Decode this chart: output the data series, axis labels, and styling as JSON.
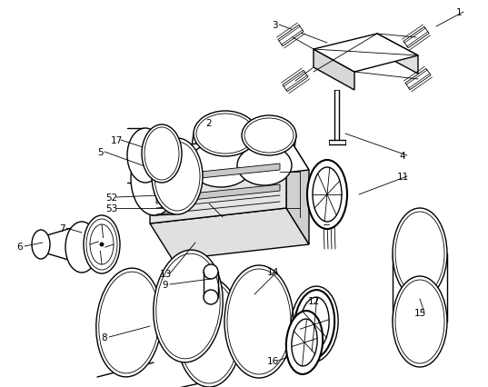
{
  "bg_color": "#ffffff",
  "lc": "#000000",
  "lw": 1.0,
  "tlw": 0.6,
  "fig_w": 5.37,
  "fig_h": 4.27,
  "dpi": 100
}
